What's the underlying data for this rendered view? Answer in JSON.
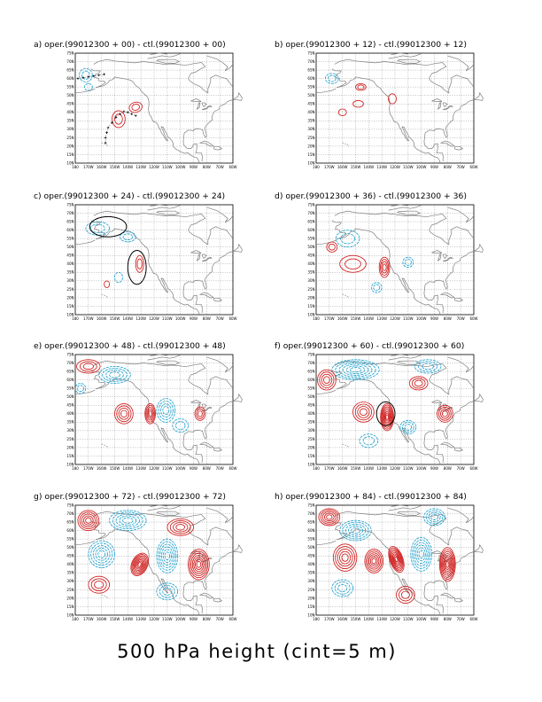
{
  "figure": {
    "caption": "500 hPa height (cint=5 m)",
    "colors": {
      "positive": "#d01c1c",
      "negative": "#21a3d0",
      "coastline": "#808080",
      "markers": "#000000"
    },
    "x_tick_labels": [
      "180",
      "170W",
      "160W",
      "150W",
      "140W",
      "130W",
      "120W",
      "110W",
      "100W",
      "90W",
      "80W",
      "70W",
      "60W"
    ],
    "y_tick_labels": [
      "10N",
      "15N",
      "20N",
      "25N",
      "30N",
      "35N",
      "40N",
      "45N",
      "50N",
      "55N",
      "60N",
      "65N",
      "70N",
      "75N"
    ],
    "panels": [
      {
        "id": "a",
        "title": "a) oper.(99012300 + 00) - ctl.(99012300 + 00)",
        "lead": 0
      },
      {
        "id": "b",
        "title": "b) oper.(99012300 + 12) - ctl.(99012300 + 12)",
        "lead": 12
      },
      {
        "id": "c",
        "title": "c) oper.(99012300 + 24) - ctl.(99012300 + 24)",
        "lead": 24
      },
      {
        "id": "d",
        "title": "d) oper.(99012300 + 36) - ctl.(99012300 + 36)",
        "lead": 36
      },
      {
        "id": "e",
        "title": "e) oper.(99012300 + 48) - ctl.(99012300 + 48)",
        "lead": 48
      },
      {
        "id": "f",
        "title": "f) oper.(99012300 + 60) - ctl.(99012300 + 60)",
        "lead": 60
      },
      {
        "id": "g",
        "title": "g) oper.(99012300 + 72) - ctl.(99012300 + 72)",
        "lead": 72
      },
      {
        "id": "h",
        "title": "h) oper.(99012300 + 84) - ctl.(99012300 + 84)",
        "lead": 84
      }
    ]
  }
}
